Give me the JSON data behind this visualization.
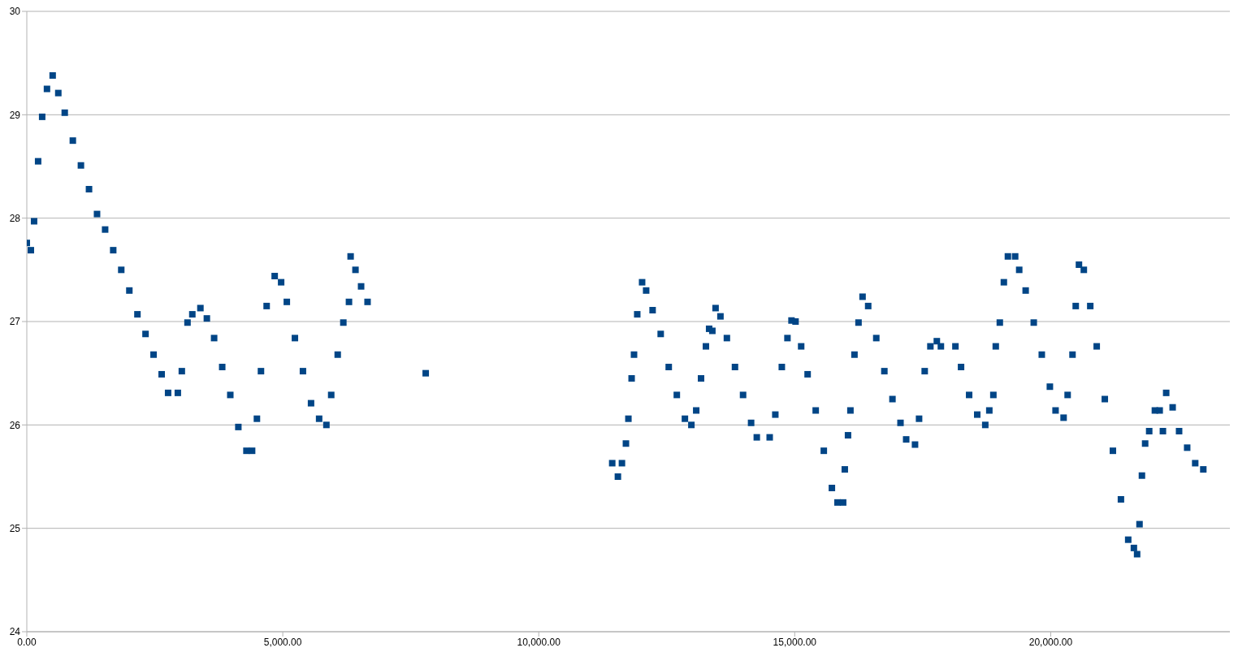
{
  "chart_data": {
    "type": "scatter",
    "xlim": [
      0,
      23500
    ],
    "ylim": [
      24,
      30
    ],
    "xticks": [
      {
        "value": 0,
        "label": "0.00"
      },
      {
        "value": 5000,
        "label": "5,000.00"
      },
      {
        "value": 10000,
        "label": "10,000.00"
      },
      {
        "value": 15000,
        "label": "15,000.00"
      },
      {
        "value": 20000,
        "label": "20,000.00"
      }
    ],
    "yticks": [
      24,
      25,
      26,
      27,
      28,
      29,
      30
    ],
    "grid": "y",
    "marker": "square",
    "legend": false,
    "series": [
      {
        "color": "#004586",
        "x": [
          0,
          79,
          142,
          221,
          300,
          394,
          505,
          615,
          741,
          899,
          1057,
          1215,
          1372,
          1530,
          1688,
          1845,
          2003,
          2161,
          2319,
          2476,
          2634,
          2760,
          2950,
          3028,
          3139,
          3233,
          3391,
          3517,
          3659,
          3817,
          3975,
          4132,
          4290,
          4401,
          4495,
          4574,
          4685,
          4842,
          4968,
          5079,
          5237,
          5394,
          5552,
          5710,
          5852,
          5946,
          6073,
          6183,
          6293,
          6325,
          6420,
          6530,
          6656,
          7792,
          11435,
          11546,
          11625,
          11703,
          11751,
          11814,
          11861,
          11924,
          12019,
          12098,
          12224,
          12382,
          12539,
          12697,
          12855,
          12981,
          13076,
          13170,
          13265,
          13328,
          13391,
          13454,
          13549,
          13675,
          13833,
          13991,
          14148,
          14259,
          14511,
          14621,
          14748,
          14858,
          14937,
          15016,
          15126,
          15252,
          15410,
          15568,
          15726,
          15836,
          15946,
          15978,
          16041,
          16088,
          16167,
          16246,
          16325,
          16435,
          16593,
          16751,
          16909,
          17066,
          17177,
          17350,
          17429,
          17539,
          17650,
          17776,
          17855,
          18139,
          18249,
          18407,
          18565,
          18722,
          18801,
          18880,
          18927,
          19006,
          19085,
          19164,
          19306,
          19385,
          19511,
          19669,
          19826,
          19984,
          20095,
          20252,
          20331,
          20426,
          20489,
          20552,
          20647,
          20773,
          20899,
          21057,
          21215,
          21372,
          21514,
          21625,
          21688,
          21735,
          21782,
          21845,
          21924,
          22035,
          22129,
          22192,
          22256,
          22382,
          22508,
          22666,
          22823,
          22981
        ],
        "values": [
          27.76,
          27.69,
          27.97,
          28.55,
          28.98,
          29.25,
          29.38,
          29.21,
          29.02,
          28.75,
          28.51,
          28.28,
          28.04,
          27.89,
          27.69,
          27.5,
          27.3,
          27.07,
          26.88,
          26.68,
          26.49,
          26.31,
          26.31,
          26.52,
          26.99,
          27.07,
          27.13,
          27.03,
          26.84,
          26.56,
          26.29,
          25.98,
          25.75,
          25.75,
          26.06,
          26.52,
          27.15,
          27.44,
          27.38,
          27.19,
          26.84,
          26.52,
          26.21,
          26.06,
          26,
          26.29,
          26.68,
          26.99,
          27.19,
          27.63,
          27.5,
          27.34,
          27.19,
          26.5,
          25.63,
          25.5,
          25.63,
          25.82,
          26.06,
          26.45,
          26.68,
          27.07,
          27.38,
          27.3,
          27.11,
          26.88,
          26.56,
          26.29,
          26.06,
          26,
          26.14,
          26.45,
          26.76,
          26.93,
          26.91,
          27.13,
          27.05,
          26.84,
          26.56,
          26.29,
          26.02,
          25.88,
          25.88,
          26.1,
          26.56,
          26.84,
          27.01,
          27,
          26.76,
          26.49,
          26.14,
          25.75,
          25.39,
          25.25,
          25.25,
          25.57,
          25.9,
          26.14,
          26.68,
          26.99,
          27.24,
          27.15,
          26.84,
          26.52,
          26.25,
          26.02,
          25.86,
          25.81,
          26.06,
          26.52,
          26.76,
          26.81,
          26.76,
          26.76,
          26.56,
          26.29,
          26.1,
          26,
          26.14,
          26.29,
          26.76,
          26.99,
          27.38,
          27.63,
          27.63,
          27.5,
          27.3,
          26.99,
          26.68,
          26.37,
          26.14,
          26.07,
          26.29,
          26.68,
          27.15,
          27.55,
          27.5,
          27.15,
          26.76,
          26.25,
          25.75,
          25.28,
          24.89,
          24.81,
          24.75,
          25.04,
          25.51,
          25.82,
          25.94,
          26.14,
          26.14,
          25.94,
          26.31,
          26.17,
          25.94,
          25.78,
          25.63,
          25.57
        ]
      }
    ]
  }
}
